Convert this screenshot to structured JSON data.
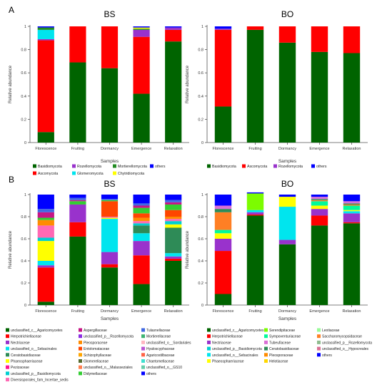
{
  "colors": {
    "Basidiomycota": "#006400",
    "Ascomycota": "#ff0000",
    "Rozellomycota": "#9932cc",
    "Mortierellomycota": "#228b22",
    "Glomeromycota": "#00e5ee",
    "Chytridiomycota": "#ffff00",
    "others": "#0000ff",
    "unclassified_c__Agaricomycetes": "#006400",
    "Herpotrichiellaceae": "#ff0000",
    "Nectriaceae": "#9932cc",
    "unclassified_o__Sebacinales": "#00e5ee",
    "Ceratobasidiaceae": "#2e8b57",
    "Phaeosphaeriaceae": "#ffff00",
    "Pezizaceae": "#ff1493",
    "unclassified_p__Basidiomycota": "#00ced1",
    "Diversisporales_fam_Incertae_sedis": "#ff69b4",
    "Aspergillaceae": "#c71585",
    "unclassified_p__Rozellomycota": "#8a2be2",
    "Pleosporaceae": "#ff8c00",
    "Entolomataceae": "#ff4500",
    "Schizophyllaceae": "#ffa500",
    "Glomerellaceae": "#556b2f",
    "unclassified_o__Malasseziales": "#ff7f50",
    "Didymellaceae": "#32cd32",
    "Tulasnellaceae": "#4169e1",
    "Mortierellaceae": "#3cb371",
    "unclassified_o__Sordariales": "#ffb6c1",
    "Hyaloscyphaceae": "#ba55d3",
    "Agaricostilbaceae": "#ff6347",
    "Chaetomellaceae": "#40e0d0",
    "unclassified_o__GS10": "#66cdaa",
    "Serendipitaceae": "#7cfc00",
    "Sympoventuriaceae": "#00fa9a",
    "Tubeufiaceae": "#da70d6",
    "Helotiaceae": "#ffd700",
    "Leotiaceae": "#98fb98",
    "Saccharomycopsidaceae": "#ff7f24",
    "unclassified_p__Rozellomycota_bo": "#8fbc8f",
    "unclassified_o__Hypocreales": "#db7093"
  },
  "chart_data": [
    {
      "id": "A-BS",
      "type": "bar",
      "stacked": true,
      "panel_letter": "A",
      "title": "BS",
      "xlabel": "Samples",
      "ylabel": "Relative abundance",
      "ylim": [
        0,
        1
      ],
      "yticks": [
        "0",
        "0.2",
        "0.4",
        "0.6",
        "0.8",
        "1"
      ],
      "categories": [
        "Florescence",
        "Fruiting",
        "Dormancy",
        "Emergence",
        "Relaxation"
      ],
      "series": [
        {
          "name": "Basidiomycota",
          "values": [
            0.09,
            0.69,
            0.64,
            0.42,
            0.87
          ]
        },
        {
          "name": "Ascomycota",
          "values": [
            0.79,
            0.31,
            0.36,
            0.49,
            0.1
          ]
        },
        {
          "name": "Rozellomycota",
          "values": [
            0.01,
            0,
            0,
            0.06,
            0.02
          ]
        },
        {
          "name": "Glomeromycota",
          "values": [
            0.08,
            0,
            0,
            0,
            0
          ]
        },
        {
          "name": "Mortierellomycota",
          "values": [
            0.02,
            0,
            0,
            0.01,
            0
          ]
        },
        {
          "name": "Chytridiomycota",
          "values": [
            0,
            0,
            0,
            0.01,
            0
          ]
        },
        {
          "name": "others",
          "values": [
            0.01,
            0,
            0,
            0.01,
            0.01
          ]
        }
      ],
      "legend": [
        "Basidiomycota",
        "Rozellomycota",
        "Mortierellomycota",
        "others",
        "Ascomycota",
        "Glomeromycota",
        "Chytridiomycota"
      ]
    },
    {
      "id": "A-BO",
      "type": "bar",
      "stacked": true,
      "title": "BO",
      "xlabel": "Samples",
      "ylabel": "Relative abundance",
      "ylim": [
        0,
        1
      ],
      "yticks": [
        "0",
        "0.2",
        "0.4",
        "0.6",
        "0.8",
        "1"
      ],
      "categories": [
        "Florescence",
        "Fruiting",
        "Dormancy",
        "Emergence",
        "Relaxation"
      ],
      "series": [
        {
          "name": "Basidiomycota",
          "values": [
            0.31,
            0.97,
            0.86,
            0.78,
            0.77
          ]
        },
        {
          "name": "Ascomycota",
          "values": [
            0.66,
            0.03,
            0.14,
            0.22,
            0.23
          ]
        },
        {
          "name": "Rozellomycota",
          "values": [
            0.01,
            0,
            0,
            0,
            0
          ]
        },
        {
          "name": "others",
          "values": [
            0.02,
            0,
            0,
            0,
            0
          ]
        }
      ],
      "legend": [
        "Basidiomycota",
        "Ascomycota",
        "Rozellomycota",
        "others"
      ]
    },
    {
      "id": "B-BS",
      "type": "bar",
      "stacked": true,
      "panel_letter": "B",
      "title": "BS",
      "xlabel": "Samples",
      "ylabel": "Relative abundance",
      "ylim": [
        0,
        1
      ],
      "yticks": [
        "0",
        "0.2",
        "0.4",
        "0.6",
        "0.8",
        "1"
      ],
      "categories": [
        "Florescence",
        "Fruiting",
        "Dormancy",
        "Emergence",
        "Relaxation"
      ],
      "series": [
        {
          "name": "unclassified_c__Agaricomycetes",
          "values": [
            0.03,
            0.62,
            0.34,
            0.19,
            0.4
          ]
        },
        {
          "name": "Herpotrichiellaceae",
          "values": [
            0.31,
            0.13,
            0.03,
            0.26,
            0.02
          ]
        },
        {
          "name": "Nectriaceae",
          "values": [
            0.02,
            0.16,
            0.11,
            0.13,
            0.02
          ]
        },
        {
          "name": "unclassified_o__Sebacinales",
          "values": [
            0.04,
            0,
            0.3,
            0.07,
            0.03
          ]
        },
        {
          "name": "Ceratobasidiaceae",
          "values": [
            0,
            0,
            0,
            0.07,
            0.23
          ]
        },
        {
          "name": "Phaeosphaeriaceae",
          "values": [
            0.18,
            0,
            0.01,
            0,
            0.03
          ]
        },
        {
          "name": "Pezizaceae",
          "values": [
            0,
            0,
            0,
            0,
            0
          ]
        },
        {
          "name": "unclassified_p__Basidiomycota",
          "values": [
            0.03,
            0,
            0,
            0.02,
            0.03
          ]
        },
        {
          "name": "Diversisporales_fam_Incertae_sedis",
          "values": [
            0.11,
            0,
            0.01,
            0.02,
            0.02
          ]
        },
        {
          "name": "Pleosporaceae",
          "values": [
            0.05,
            0,
            0,
            0.03,
            0.02
          ]
        },
        {
          "name": "Entolomataceae",
          "values": [
            0,
            0,
            0.14,
            0.04,
            0.06
          ]
        },
        {
          "name": "Didymellaceae",
          "values": [
            0.02,
            0.03,
            0.01,
            0.05,
            0.05
          ]
        },
        {
          "name": "Aspergillaceae",
          "values": [
            0.05,
            0.01,
            0,
            0.02,
            0.02
          ]
        },
        {
          "name": "Tulasnellaceae",
          "values": [
            0.03,
            0.02,
            0.01,
            0.02,
            0.02
          ]
        },
        {
          "name": "others",
          "values": [
            0.13,
            0.03,
            0.04,
            0.08,
            0.05
          ]
        }
      ],
      "legend_cols": [
        [
          "unclassified_c__Agaricomycetes",
          "Herpotrichiellaceae",
          "Nectriaceae",
          "unclassified_o__Sebacinales",
          "Ceratobasidiaceae",
          "Phaeosphaeriaceae",
          "Pezizaceae",
          "unclassified_p__Basidiomycota",
          "Diversisporales_fam_Incertae_sedis"
        ],
        [
          "Aspergillaceae",
          "unclassified_p__Rozellomycota",
          "Pleosporaceae",
          "Entolomataceae",
          "Schizophyllaceae",
          "Glomerellaceae",
          "unclassified_o__Malasseziales",
          "Didymellaceae"
        ],
        [
          "Tulasnellaceae",
          "Mortierellaceae",
          "unclassified_o__Sordariales",
          "Hyaloscyphaceae",
          "Agaricostilbaceae",
          "Chaetomellaceae",
          "unclassified_o__GS10",
          "others"
        ]
      ]
    },
    {
      "id": "B-BO",
      "type": "bar",
      "stacked": true,
      "title": "BO",
      "xlabel": "Samples",
      "ylabel": "Relative abundance",
      "ylim": [
        0,
        1
      ],
      "yticks": [
        "0",
        "0.2",
        "0.4",
        "0.6",
        "0.8",
        "1"
      ],
      "categories": [
        "Florescence",
        "Fruiting",
        "Dormancy",
        "Emergence",
        "Relaxation"
      ],
      "series": [
        {
          "name": "unclassified_c__Agaricomycetes",
          "values": [
            0.1,
            0.81,
            0.55,
            0.72,
            0.74
          ]
        },
        {
          "name": "Herpotrichiellaceae",
          "values": [
            0.39,
            0.01,
            0,
            0.09,
            0.01
          ]
        },
        {
          "name": "Nectriaceae",
          "values": [
            0.11,
            0.02,
            0.04,
            0.06,
            0.08
          ]
        },
        {
          "name": "unclassified_o__Sebacinales",
          "values": [
            0,
            0.02,
            0.3,
            0,
            0.02
          ]
        },
        {
          "name": "Serendipitaceae",
          "values": [
            0,
            0.15,
            0,
            0,
            0
          ]
        },
        {
          "name": "Phaeosphaeriaceae",
          "values": [
            0.05,
            0,
            0.09,
            0.03,
            0.01
          ]
        },
        {
          "name": "Sympoventuriaceae",
          "values": [
            0.03,
            0,
            0,
            0.04,
            0.04
          ]
        },
        {
          "name": "Saccharomycopsidaceae",
          "values": [
            0.16,
            0,
            0,
            0.01,
            0.01
          ]
        },
        {
          "name": "Ceratobasidiaceae",
          "values": [
            0.03,
            0,
            0,
            0.01,
            0.01
          ]
        },
        {
          "name": "Tubeufiaceae",
          "values": [
            0.03,
            0,
            0,
            0.02,
            0.02
          ]
        },
        {
          "name": "others",
          "values": [
            0.1,
            0.01,
            0.02,
            0.02,
            0.06
          ]
        }
      ],
      "legend_cols": [
        [
          "unclassified_c__Agaricomycetes",
          "Herpotrichiellaceae",
          "Nectriaceae",
          "unclassified_p__Basidiomycota",
          "unclassified_o__Sebacinales",
          "Phaeosphaeriaceae"
        ],
        [
          "Serendipitaceae",
          "Sympoventuriaceae",
          "Tubeufiaceae",
          "Ceratobasidiaceae",
          "Pleosporaceae",
          "Helotiaceae"
        ],
        [
          "Leotiaceae",
          "Saccharomycopsidaceae",
          "unclassified_p__Rozellomycota",
          "unclassified_o__Hypocreales",
          "others"
        ]
      ]
    }
  ]
}
